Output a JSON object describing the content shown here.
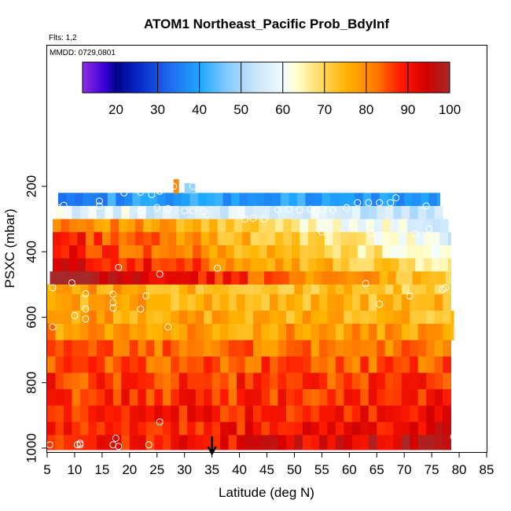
{
  "chart_data": {
    "type": "heatmap",
    "title": "ATOM1 Northeast_Pacific Prob_BdyInf",
    "flights_note": "Flts: 1,2",
    "date_note": "MMDD: 0729,0801",
    "xlabel": "Latitude (deg N)",
    "ylabel": "PSXC (mbar)",
    "xlim": [
      5,
      85
    ],
    "ylim": [
      1000,
      0
    ],
    "x_ticks": [
      "5",
      "10",
      "15",
      "20",
      "25",
      "30",
      "35",
      "40",
      "45",
      "50",
      "55",
      "60",
      "65",
      "70",
      "75",
      "80",
      "85"
    ],
    "y_ticks": [
      "200",
      "400",
      "600",
      "800",
      "1000"
    ],
    "colorbar": {
      "range": [
        12,
        100
      ],
      "ticks": [
        "20",
        "30",
        "40",
        "50",
        "60",
        "70",
        "80",
        "90",
        "100"
      ],
      "colors": [
        {
          "v": 12,
          "c": "#8a2be2"
        },
        {
          "v": 17,
          "c": "#3a00d8"
        },
        {
          "v": 20,
          "c": "#00008b"
        },
        {
          "v": 26,
          "c": "#0a2fd0"
        },
        {
          "v": 33,
          "c": "#1e6ef0"
        },
        {
          "v": 40,
          "c": "#1ea8ff"
        },
        {
          "v": 46,
          "c": "#7ec8ff"
        },
        {
          "v": 54,
          "c": "#cfe8fb"
        },
        {
          "v": 60,
          "c": "#f2fbff"
        },
        {
          "v": 63,
          "c": "#ffffd0"
        },
        {
          "v": 68,
          "c": "#ffe070"
        },
        {
          "v": 75,
          "c": "#ffb300"
        },
        {
          "v": 82,
          "c": "#ff7a00"
        },
        {
          "v": 88,
          "c": "#ff1a00"
        },
        {
          "v": 94,
          "c": "#d40000"
        },
        {
          "v": 100,
          "c": "#a52a2a"
        }
      ]
    },
    "grid": false,
    "legend": "colorbar at top inside plot",
    "layers": [
      {
        "p_top": 220,
        "p_bot": 260,
        "lat_min": 7,
        "lat_max": 76.5,
        "base": 38,
        "lat_slope": 0
      },
      {
        "p_top": 260,
        "p_bot": 300,
        "lat_min": 6.5,
        "lat_max": 77,
        "base": 56,
        "lat_slope": -0.05
      },
      {
        "p_top": 300,
        "p_bot": 340,
        "lat_min": 6,
        "lat_max": 78,
        "base": 70,
        "lat_slope": -0.4
      },
      {
        "p_top": 340,
        "p_bot": 380,
        "lat_min": 6,
        "lat_max": 78.5,
        "base": 74,
        "lat_slope": -0.45
      },
      {
        "p_top": 380,
        "p_bot": 420,
        "lat_min": 6,
        "lat_max": 78.5,
        "base": 76,
        "lat_slope": -0.4
      },
      {
        "p_top": 420,
        "p_bot": 460,
        "lat_min": 6,
        "lat_max": 78.5,
        "base": 80,
        "lat_slope": -0.4
      },
      {
        "p_top": 460,
        "p_bot": 500,
        "lat_min": 5.5,
        "lat_max": 78.5,
        "base": 86,
        "lat_slope": -0.4
      },
      {
        "p_top": 500,
        "p_bot": 530,
        "lat_min": 5,
        "lat_max": 78.5,
        "base": 74,
        "lat_slope": -0.12
      },
      {
        "p_top": 530,
        "p_bot": 580,
        "lat_min": 5,
        "lat_max": 78.5,
        "base": 75,
        "lat_slope": -0.05
      },
      {
        "p_top": 580,
        "p_bot": 620,
        "lat_min": 5,
        "lat_max": 79,
        "base": 76,
        "lat_slope": -0.05
      },
      {
        "p_top": 620,
        "p_bot": 670,
        "lat_min": 5,
        "lat_max": 79,
        "base": 78,
        "lat_slope": -0.02
      },
      {
        "p_top": 670,
        "p_bot": 720,
        "lat_min": 5,
        "lat_max": 78.5,
        "base": 82,
        "lat_slope": -0.03
      },
      {
        "p_top": 720,
        "p_bot": 770,
        "lat_min": 5,
        "lat_max": 78.5,
        "base": 84,
        "lat_slope": -0.02
      },
      {
        "p_top": 770,
        "p_bot": 820,
        "lat_min": 5,
        "lat_max": 78.5,
        "base": 86,
        "lat_slope": -0.01
      },
      {
        "p_top": 820,
        "p_bot": 870,
        "lat_min": 5,
        "lat_max": 78.5,
        "base": 87,
        "lat_slope": 0.02
      },
      {
        "p_top": 870,
        "p_bot": 920,
        "lat_min": 5,
        "lat_max": 78.5,
        "base": 88,
        "lat_slope": 0.04
      },
      {
        "p_top": 920,
        "p_bot": 960,
        "lat_min": 5,
        "lat_max": 78.5,
        "base": 89,
        "lat_slope": 0.07
      },
      {
        "p_top": 960,
        "p_bot": 1005,
        "lat_min": 5,
        "lat_max": 78.5,
        "base": 91,
        "lat_slope": 0.12
      }
    ],
    "marker": {
      "type": "arrow",
      "lat": 35
    },
    "points": [
      {
        "lat": 22,
        "p": 218
      },
      {
        "lat": 24,
        "p": 225
      },
      {
        "lat": 28,
        "p": 200
      },
      {
        "lat": 31.5,
        "p": 200
      },
      {
        "lat": 19,
        "p": 220
      },
      {
        "lat": 25.5,
        "p": 215
      },
      {
        "lat": 14.5,
        "p": 245
      },
      {
        "lat": 14.5,
        "p": 260
      },
      {
        "lat": 8,
        "p": 258
      },
      {
        "lat": 7,
        "p": 265
      },
      {
        "lat": 25,
        "p": 265
      },
      {
        "lat": 27,
        "p": 268
      },
      {
        "lat": 30,
        "p": 275
      },
      {
        "lat": 31.5,
        "p": 275
      },
      {
        "lat": 33.5,
        "p": 277
      },
      {
        "lat": 34,
        "p": 285
      },
      {
        "lat": 22,
        "p": 275
      },
      {
        "lat": 41,
        "p": 300
      },
      {
        "lat": 42.5,
        "p": 298
      },
      {
        "lat": 44.5,
        "p": 300
      },
      {
        "lat": 47,
        "p": 272
      },
      {
        "lat": 49,
        "p": 270
      },
      {
        "lat": 51,
        "p": 272
      },
      {
        "lat": 53,
        "p": 270
      },
      {
        "lat": 55,
        "p": 270
      },
      {
        "lat": 57,
        "p": 272
      },
      {
        "lat": 59.5,
        "p": 265
      },
      {
        "lat": 61.5,
        "p": 250
      },
      {
        "lat": 63.5,
        "p": 250
      },
      {
        "lat": 65.5,
        "p": 250
      },
      {
        "lat": 67.5,
        "p": 250
      },
      {
        "lat": 68.5,
        "p": 235
      },
      {
        "lat": 74,
        "p": 260
      },
      {
        "lat": 74.5,
        "p": 330
      },
      {
        "lat": 72,
        "p": 345
      },
      {
        "lat": 64,
        "p": 345
      },
      {
        "lat": 55,
        "p": 340
      },
      {
        "lat": 36,
        "p": 450
      },
      {
        "lat": 18,
        "p": 448
      },
      {
        "lat": 25.5,
        "p": 468
      },
      {
        "lat": 9.5,
        "p": 495
      },
      {
        "lat": 6,
        "p": 510
      },
      {
        "lat": 12,
        "p": 528
      },
      {
        "lat": 17,
        "p": 530
      },
      {
        "lat": 23,
        "p": 535
      },
      {
        "lat": 17,
        "p": 555
      },
      {
        "lat": 17,
        "p": 572
      },
      {
        "lat": 12,
        "p": 575
      },
      {
        "lat": 22,
        "p": 575
      },
      {
        "lat": 10,
        "p": 595
      },
      {
        "lat": 12,
        "p": 605
      },
      {
        "lat": 6,
        "p": 630
      },
      {
        "lat": 27,
        "p": 630
      },
      {
        "lat": 63,
        "p": 497
      },
      {
        "lat": 65.5,
        "p": 560
      },
      {
        "lat": 77,
        "p": 515
      },
      {
        "lat": 77.5,
        "p": 510
      },
      {
        "lat": 71,
        "p": 535
      },
      {
        "lat": 25.5,
        "p": 920
      },
      {
        "lat": 10.5,
        "p": 990
      },
      {
        "lat": 11,
        "p": 985
      },
      {
        "lat": 17,
        "p": 990
      },
      {
        "lat": 17.5,
        "p": 970
      },
      {
        "lat": 18,
        "p": 995
      },
      {
        "lat": 23.5,
        "p": 990
      },
      {
        "lat": 5.5,
        "p": 990
      },
      {
        "lat": 79,
        "p": 965
      },
      {
        "lat": 11,
        "p": 990
      }
    ]
  }
}
